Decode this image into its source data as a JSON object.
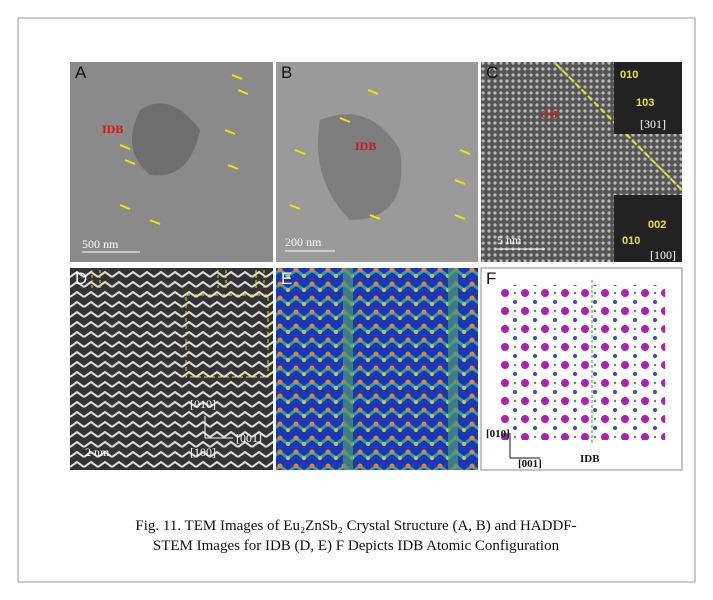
{
  "panels": [
    {
      "label": "A",
      "idb": "IDB",
      "scale": "500 nm"
    },
    {
      "label": "B",
      "idb": "IDB",
      "scale": "200 nm"
    },
    {
      "label": "C",
      "gb": "GB",
      "fft_top": [
        "010",
        "103",
        "[301]"
      ],
      "fft_bottom": [
        "002",
        "010",
        "[100]"
      ],
      "scale": "5 nm"
    },
    {
      "label": "D",
      "axes": [
        "[010]",
        "[001]",
        "[100]"
      ],
      "scale": "2 nm"
    },
    {
      "label": "E"
    },
    {
      "label": "F",
      "axes": [
        "[010]",
        "[001]"
      ],
      "idb": "IDB"
    }
  ],
  "caption": {
    "lines": [
      "Fig. 11. TEM Images of Eu₂ZnSb₂ Crystal Structure (A, B) and HADDF-",
      "STEM Images for IDB (D, E) F Depicts IDB Atomic Configuration"
    ]
  }
}
